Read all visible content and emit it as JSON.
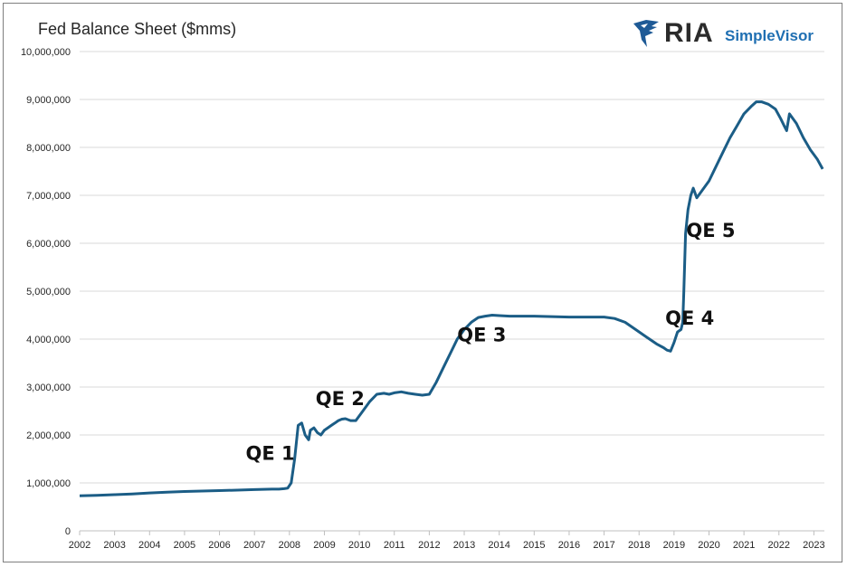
{
  "brand": {
    "name": "RIA",
    "product": "SimpleVisor",
    "colors": {
      "ria": "#2b2b2b",
      "simplevisor": "#1f6fb2",
      "eagle": "#1e5a96"
    }
  },
  "chart_data": {
    "type": "line",
    "title": "Fed Balance Sheet ($mms)",
    "xlabel": "",
    "ylabel": "",
    "ylim": [
      0,
      10000000
    ],
    "xlim": [
      2002.0,
      2023.3
    ],
    "yticks": [
      0,
      1000000,
      2000000,
      3000000,
      4000000,
      5000000,
      6000000,
      7000000,
      8000000,
      9000000,
      10000000
    ],
    "ytick_labels": [
      "0",
      "1,000,000",
      "2,000,000",
      "3,000,000",
      "4,000,000",
      "5,000,000",
      "6,000,000",
      "7,000,000",
      "8,000,000",
      "9,000,000",
      "10,000,000"
    ],
    "xticks": [
      2002,
      2003,
      2004,
      2005,
      2006,
      2007,
      2008,
      2009,
      2010,
      2011,
      2012,
      2013,
      2014,
      2015,
      2016,
      2017,
      2018,
      2019,
      2020,
      2021,
      2022,
      2023
    ],
    "xtick_labels": [
      "2002",
      "2003",
      "2004",
      "2005",
      "2006",
      "2007",
      "2008",
      "2009",
      "2010",
      "2011",
      "2012",
      "2013",
      "2014",
      "2015",
      "2016",
      "2017",
      "2018",
      "2019",
      "2020",
      "2021",
      "2022",
      "2023"
    ],
    "grid": "horizontal",
    "legend": "none",
    "line_color": "#1b5d86",
    "series": [
      {
        "x": [
          2002.0,
          2002.5,
          2003.0,
          2003.5,
          2004.0,
          2004.5,
          2005.0,
          2005.5,
          2006.0,
          2006.5,
          2007.0,
          2007.5,
          2007.7,
          2007.85,
          2007.95,
          2008.05,
          2008.15,
          2008.25,
          2008.35,
          2008.45,
          2008.55,
          2008.6,
          2008.7,
          2008.8,
          2008.9,
          2009.0,
          2009.1,
          2009.2,
          2009.3,
          2009.4,
          2009.5,
          2009.6,
          2009.75,
          2009.9,
          2010.1,
          2010.3,
          2010.5,
          2010.7,
          2010.85,
          2011.0,
          2011.2,
          2011.4,
          2011.6,
          2011.8,
          2012.0,
          2012.2,
          2012.4,
          2012.6,
          2012.8,
          2013.0,
          2013.2,
          2013.4,
          2013.6,
          2013.8,
          2014.0,
          2014.3,
          2014.6,
          2015.0,
          2015.5,
          2016.0,
          2016.5,
          2017.0,
          2017.3,
          2017.6,
          2017.9,
          2018.2,
          2018.5,
          2018.7,
          2018.8,
          2018.9,
          2019.0,
          2019.1,
          2019.2,
          2019.25,
          2019.28,
          2019.33,
          2019.4,
          2019.48,
          2019.55,
          2019.65,
          2019.8,
          2020.0,
          2020.2,
          2020.4,
          2020.6,
          2020.8,
          2021.0,
          2021.2,
          2021.35,
          2021.5,
          2021.7,
          2021.9,
          2022.05,
          2022.15,
          2022.22,
          2022.3,
          2022.5,
          2022.7,
          2022.9,
          2023.1,
          2023.25
        ],
        "y": [
          730000,
          740000,
          755000,
          770000,
          790000,
          805000,
          820000,
          830000,
          840000,
          850000,
          860000,
          870000,
          870000,
          880000,
          890000,
          1000000,
          1500000,
          2200000,
          2250000,
          2000000,
          1900000,
          2100000,
          2150000,
          2050000,
          2000000,
          2100000,
          2150000,
          2200000,
          2250000,
          2300000,
          2330000,
          2340000,
          2300000,
          2300000,
          2500000,
          2700000,
          2850000,
          2870000,
          2850000,
          2880000,
          2900000,
          2870000,
          2850000,
          2830000,
          2850000,
          3100000,
          3400000,
          3700000,
          4000000,
          4200000,
          4350000,
          4450000,
          4480000,
          4500000,
          4490000,
          4480000,
          4480000,
          4480000,
          4470000,
          4460000,
          4460000,
          4460000,
          4430000,
          4350000,
          4200000,
          4050000,
          3900000,
          3820000,
          3770000,
          3750000,
          3930000,
          4150000,
          4200000,
          4350000,
          5000000,
          6200000,
          6700000,
          7000000,
          7150000,
          6950000,
          7100000,
          7300000,
          7600000,
          7900000,
          8200000,
          8450000,
          8700000,
          8850000,
          8950000,
          8950000,
          8900000,
          8800000,
          8600000,
          8450000,
          8350000,
          8700000,
          8500000,
          8200000,
          7950000,
          7750000,
          7550000
        ]
      }
    ],
    "annotations": [
      {
        "text": "QE 1",
        "x": 2007.45,
        "y": 1480000
      },
      {
        "text": "QE 2",
        "x": 2009.45,
        "y": 2620000
      },
      {
        "text": "QE 3",
        "x": 2013.5,
        "y": 3950000
      },
      {
        "text": "QE 4",
        "x": 2019.45,
        "y": 4300000
      },
      {
        "text": "QE 5",
        "x": 2020.05,
        "y": 6130000
      }
    ]
  }
}
